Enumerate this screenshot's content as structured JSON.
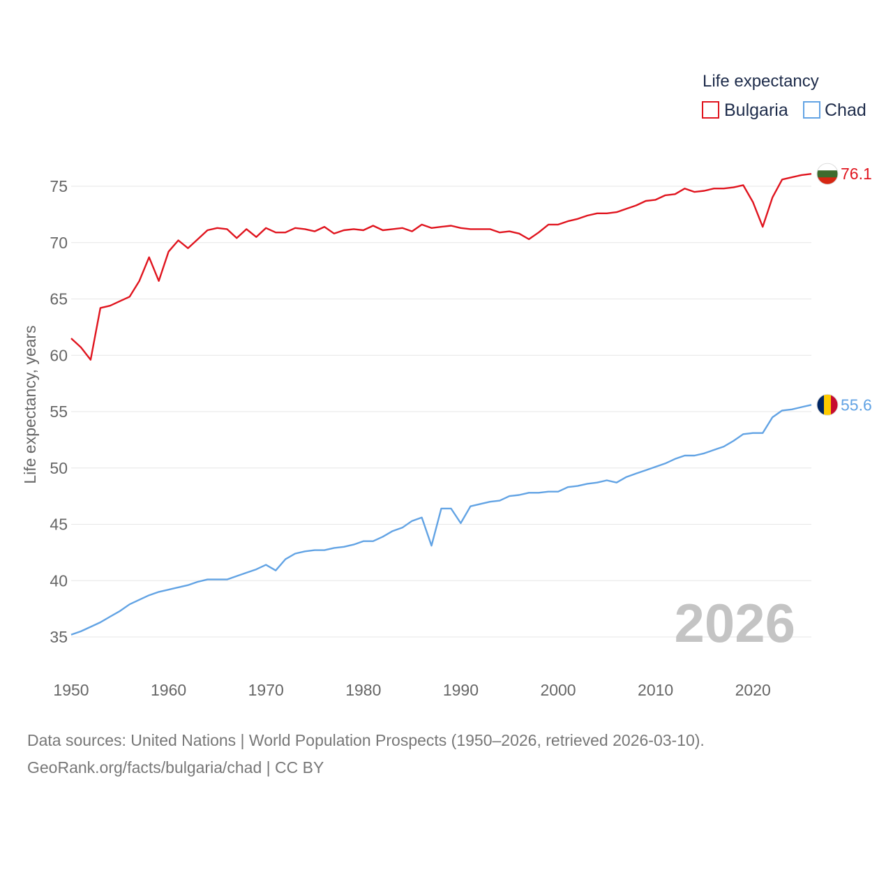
{
  "chart_data": {
    "type": "line",
    "title": "",
    "legend_title": "Life expectancy",
    "ylabel": "Life expectancy, years",
    "xlabel": "",
    "xlim": [
      1950,
      2026
    ],
    "ylim": [
      32,
      78
    ],
    "x_ticks": [
      1950,
      1960,
      1970,
      1980,
      1990,
      2000,
      2010,
      2020
    ],
    "y_ticks": [
      35,
      40,
      45,
      50,
      55,
      60,
      65,
      70,
      75
    ],
    "year_watermark": "2026",
    "x": [
      1950,
      1951,
      1952,
      1953,
      1954,
      1955,
      1956,
      1957,
      1958,
      1959,
      1960,
      1961,
      1962,
      1963,
      1964,
      1965,
      1966,
      1967,
      1968,
      1969,
      1970,
      1971,
      1972,
      1973,
      1974,
      1975,
      1976,
      1977,
      1978,
      1979,
      1980,
      1981,
      1982,
      1983,
      1984,
      1985,
      1986,
      1987,
      1988,
      1989,
      1990,
      1991,
      1992,
      1993,
      1994,
      1995,
      1996,
      1997,
      1998,
      1999,
      2000,
      2001,
      2002,
      2003,
      2004,
      2005,
      2006,
      2007,
      2008,
      2009,
      2010,
      2011,
      2012,
      2013,
      2014,
      2015,
      2016,
      2017,
      2018,
      2019,
      2020,
      2021,
      2022,
      2023,
      2024,
      2025,
      2026
    ],
    "series": [
      {
        "name": "Bulgaria",
        "color": "#e0141e",
        "end_label": "76.1",
        "flag_colors": [
          "#ffffff",
          "#3e6b2e",
          "#d62612"
        ],
        "values": [
          61.5,
          60.7,
          59.6,
          64.2,
          64.4,
          64.8,
          65.2,
          66.6,
          68.7,
          66.6,
          69.2,
          70.2,
          69.5,
          70.3,
          71.1,
          71.3,
          71.2,
          70.4,
          71.2,
          70.5,
          71.3,
          70.9,
          70.9,
          71.3,
          71.2,
          71.0,
          71.4,
          70.8,
          71.1,
          71.2,
          71.1,
          71.5,
          71.1,
          71.2,
          71.3,
          71.0,
          71.6,
          71.3,
          71.4,
          71.5,
          71.3,
          71.2,
          71.2,
          71.2,
          70.9,
          71.0,
          70.8,
          70.3,
          70.9,
          71.6,
          71.6,
          71.9,
          72.1,
          72.4,
          72.6,
          72.6,
          72.7,
          73.0,
          73.3,
          73.7,
          73.8,
          74.2,
          74.3,
          74.8,
          74.5,
          74.6,
          74.8,
          74.8,
          74.9,
          75.1,
          73.6,
          71.4,
          74.0,
          75.6,
          75.8,
          76.0,
          76.1
        ]
      },
      {
        "name": "Chad",
        "color": "#62a3e4",
        "end_label": "55.6",
        "flag_colors": [
          "#002664",
          "#fecb00",
          "#c60c30"
        ],
        "values": [
          35.2,
          35.5,
          35.9,
          36.3,
          36.8,
          37.3,
          37.9,
          38.3,
          38.7,
          39.0,
          39.2,
          39.4,
          39.6,
          39.9,
          40.1,
          40.1,
          40.1,
          40.4,
          40.7,
          41.0,
          41.4,
          40.9,
          41.9,
          42.4,
          42.6,
          42.7,
          42.7,
          42.9,
          43.0,
          43.2,
          43.5,
          43.5,
          43.9,
          44.4,
          44.7,
          45.3,
          45.6,
          43.1,
          46.4,
          46.4,
          45.1,
          46.6,
          46.8,
          47.0,
          47.1,
          47.5,
          47.6,
          47.8,
          47.8,
          47.9,
          47.9,
          48.3,
          48.4,
          48.6,
          48.7,
          48.9,
          48.7,
          49.2,
          49.5,
          49.8,
          50.1,
          50.4,
          50.8,
          51.1,
          51.1,
          51.3,
          51.6,
          51.9,
          52.4,
          53.0,
          53.1,
          53.1,
          54.5,
          55.1,
          55.2,
          55.4,
          55.6
        ]
      }
    ]
  },
  "footer": {
    "source_line": "Data sources: United Nations | World Population Prospects (1950–2026, retrieved 2026-03-10).",
    "credit_line": "GeoRank.org/facts/bulgaria/chad | CC BY"
  }
}
